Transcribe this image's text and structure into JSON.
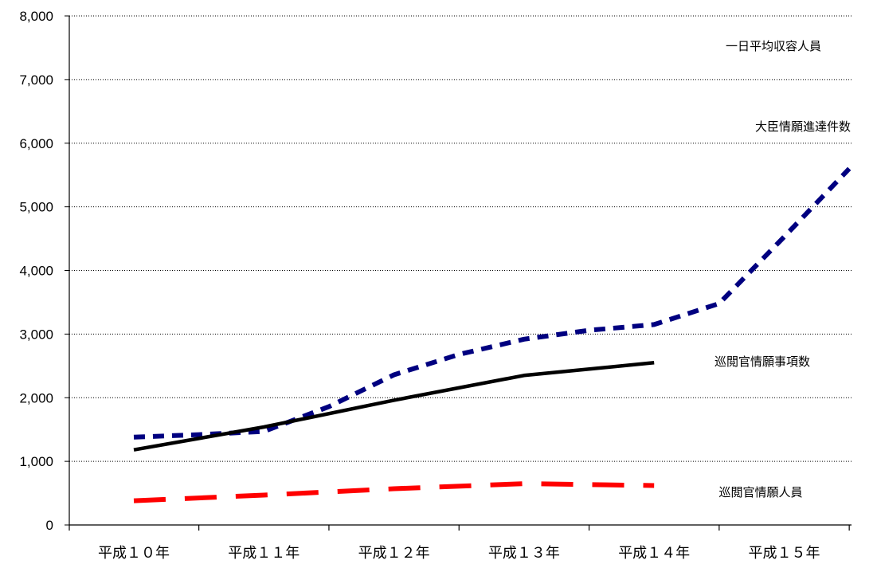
{
  "chart_data": {
    "type": "line",
    "categories": [
      "平成１０年",
      "平成１１年",
      "平成１２年",
      "平成１３年",
      "平成１４年",
      "平成１５年"
    ],
    "ylim": [
      0,
      8000
    ],
    "yticks": [
      0,
      1000,
      2000,
      3000,
      4000,
      5000,
      6000,
      7000,
      8000
    ],
    "ytick_labels": [
      "0",
      "1,000",
      "2,000",
      "3,000",
      "4,000",
      "5,000",
      "6,000",
      "7,000",
      "8,000"
    ],
    "grid": true,
    "series": [
      {
        "name": "大臣情願進達件数",
        "color": "#000080",
        "style": "short-dash",
        "points": [
          {
            "x": 0.0,
            "y": 1380
          },
          {
            "x": 0.5,
            "y": 1420
          },
          {
            "x": 1.0,
            "y": 1470
          },
          {
            "x": 1.5,
            "y": 1860
          },
          {
            "x": 2.0,
            "y": 2360
          },
          {
            "x": 2.5,
            "y": 2680
          },
          {
            "x": 3.0,
            "y": 2920
          },
          {
            "x": 3.5,
            "y": 3060
          },
          {
            "x": 4.0,
            "y": 3150
          },
          {
            "x": 4.5,
            "y": 3480
          },
          {
            "x": 5.0,
            "y": 4530
          },
          {
            "x": 5.5,
            "y": 5600
          }
        ]
      },
      {
        "name": "巡閲官情願事項数",
        "color": "#000000",
        "style": "solid",
        "points": [
          {
            "x": 0.0,
            "y": 1180
          },
          {
            "x": 1.0,
            "y": 1540
          },
          {
            "x": 2.0,
            "y": 1960
          },
          {
            "x": 3.0,
            "y": 2350
          },
          {
            "x": 4.0,
            "y": 2550
          }
        ]
      },
      {
        "name": "巡閲官情願人員",
        "color": "#ff0000",
        "style": "long-dash",
        "points": [
          {
            "x": 0.0,
            "y": 380
          },
          {
            "x": 1.0,
            "y": 470
          },
          {
            "x": 2.0,
            "y": 570
          },
          {
            "x": 3.0,
            "y": 650
          },
          {
            "x": 4.0,
            "y": 620
          }
        ]
      },
      {
        "name": "一日平均収容人員",
        "color": "#ffffff",
        "style": "solid",
        "points": []
      }
    ]
  }
}
